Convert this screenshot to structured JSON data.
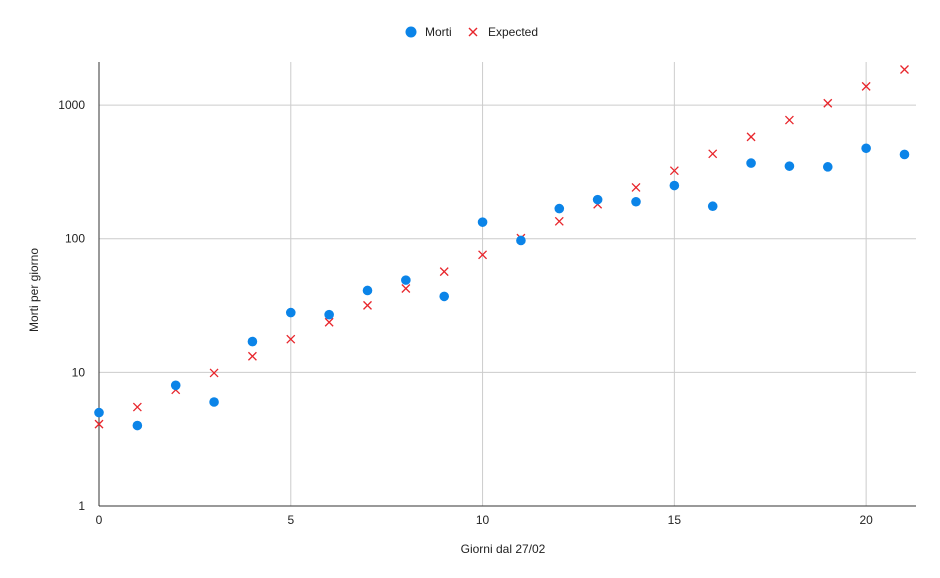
{
  "chart_data": {
    "type": "scatter",
    "xlabel": "Giorni dal 27/02",
    "ylabel": "Morti per giorno",
    "xlim": [
      0,
      21.3
    ],
    "ylim": [
      1,
      2100
    ],
    "yscale": "log",
    "x_ticks": [
      0,
      5,
      10,
      15,
      20
    ],
    "x_tick_labels": [
      "0",
      "5",
      "10",
      "15",
      "20"
    ],
    "y_ticks": [
      1,
      10,
      100,
      1000
    ],
    "y_tick_labels": [
      "1",
      "10",
      "100",
      "1000"
    ],
    "grid": true,
    "legend_position": "top-center",
    "series": [
      {
        "name": "Morti",
        "marker": "circle",
        "color": "#0b84e8",
        "x": [
          0,
          1,
          2,
          3,
          4,
          5,
          6,
          7,
          8,
          9,
          10,
          11,
          12,
          13,
          14,
          15,
          16,
          17,
          18,
          19,
          20,
          21
        ],
        "y": [
          5,
          4,
          8,
          6,
          17,
          28,
          27,
          41,
          49,
          37,
          133,
          97,
          168,
          196,
          189,
          250,
          175,
          368,
          349,
          345,
          475,
          427
        ]
      },
      {
        "name": "Expected",
        "marker": "x",
        "color": "#e8262c",
        "x": [
          0,
          1,
          2,
          3,
          4,
          5,
          6,
          7,
          8,
          9,
          10,
          11,
          12,
          13,
          14,
          15,
          16,
          17,
          18,
          19,
          20,
          21
        ],
        "y": [
          4.1,
          5.5,
          7.4,
          9.9,
          13.2,
          17.7,
          23.7,
          31.7,
          42.4,
          56.7,
          75.8,
          101,
          135,
          181,
          242,
          323,
          432,
          578,
          772,
          1032,
          1380,
          1845
        ]
      }
    ]
  }
}
